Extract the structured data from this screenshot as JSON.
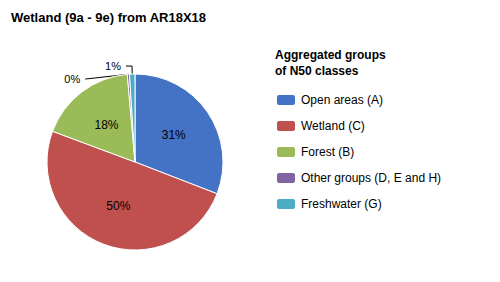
{
  "chart_data": {
    "type": "pie",
    "title": "Wetland (9a - 9e) from AR18X18",
    "legend_title": "Aggregated groups\nof N50 classes",
    "categories": [
      "Open areas (A)",
      "Wetland (C)",
      "Forest (B)",
      "Other groups (D, E and H)",
      "Freshwater (G)"
    ],
    "values": [
      31,
      50,
      18,
      0.4,
      1
    ],
    "value_labels": [
      "31%",
      "50%",
      "18%",
      "0%",
      "1%"
    ],
    "colors": [
      "#4472C4",
      "#C0504D",
      "#9BBB59",
      "#8064A2",
      "#4BACC6"
    ],
    "data_labels": true,
    "legend": "right"
  }
}
